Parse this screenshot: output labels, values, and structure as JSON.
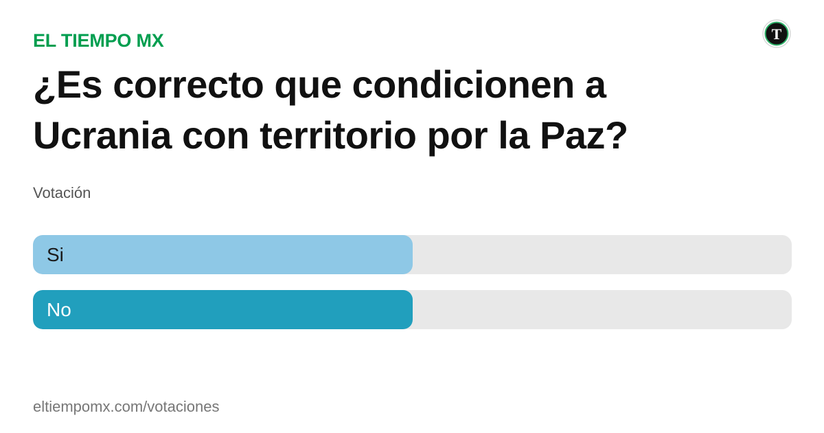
{
  "header": {
    "brand": "EL TIEMPO MX",
    "brand_color": "#009e4f",
    "logo_icon": "el-tiempo-logo-icon",
    "logo_letter": "T"
  },
  "poll": {
    "title": "¿Es correcto que condicionen a Ucrania con territorio por la Paz?",
    "subtitle": "Votación",
    "options": [
      {
        "label": "Si",
        "fraction": 0.5,
        "color": "#8ec8e6",
        "text_color": "#1a1a1a"
      },
      {
        "label": "No",
        "fraction": 0.5,
        "color": "#219fbd",
        "text_color": "#ffffff"
      }
    ],
    "track_color": "#e8e8e8"
  },
  "footer": {
    "url": "eltiempomx.com/votaciones"
  }
}
